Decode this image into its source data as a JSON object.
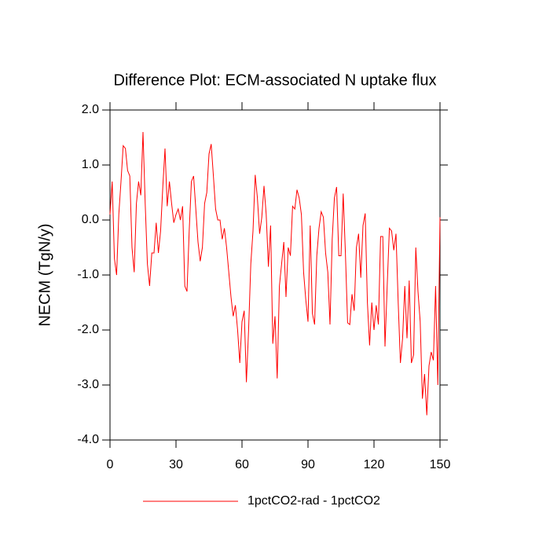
{
  "chart_data": {
    "type": "line",
    "title": "Difference Plot: ECM-associated N uptake flux",
    "y_label": "NECM  (TgN/y)",
    "x": [
      0,
      1,
      2,
      3,
      4,
      5,
      6,
      7,
      8,
      9,
      10,
      11,
      12,
      13,
      14,
      15,
      16,
      17,
      18,
      19,
      20,
      21,
      22,
      23,
      24,
      25,
      26,
      27,
      28,
      29,
      30,
      31,
      32,
      33,
      34,
      35,
      36,
      37,
      38,
      39,
      40,
      41,
      42,
      43,
      44,
      45,
      46,
      47,
      48,
      49,
      50,
      51,
      52,
      53,
      54,
      55,
      56,
      57,
      58,
      59,
      60,
      61,
      62,
      63,
      64,
      65,
      66,
      67,
      68,
      69,
      70,
      71,
      72,
      73,
      74,
      75,
      76,
      77,
      78,
      79,
      80,
      81,
      82,
      83,
      84,
      85,
      86,
      87,
      88,
      89,
      90,
      91,
      92,
      93,
      94,
      95,
      96,
      97,
      98,
      99,
      100,
      101,
      102,
      103,
      104,
      105,
      106,
      107,
      108,
      109,
      110,
      111,
      112,
      113,
      114,
      115,
      116,
      117,
      118,
      119,
      120,
      121,
      122,
      123,
      124,
      125,
      126,
      127,
      128,
      129,
      130,
      131,
      132,
      133,
      134,
      135,
      136,
      137,
      138,
      139,
      140,
      141,
      142,
      143,
      144,
      145,
      146,
      147,
      148,
      149,
      150
    ],
    "series": [
      {
        "name": "1pctCO2-rad - 1pctCO2",
        "color": "#ff0000",
        "values": [
          0.1,
          0.7,
          -0.7,
          -1.0,
          0.1,
          0.7,
          1.35,
          1.3,
          0.9,
          0.8,
          -0.5,
          -0.95,
          0.3,
          0.7,
          0.45,
          1.6,
          0.3,
          -0.8,
          -1.2,
          -0.6,
          -0.6,
          -0.05,
          -0.6,
          -0.2,
          0.6,
          1.3,
          0.25,
          0.7,
          0.3,
          -0.05,
          0.1,
          0.2,
          0.0,
          0.25,
          -1.2,
          -1.3,
          -0.2,
          0.7,
          0.8,
          0.2,
          -0.4,
          -0.75,
          -0.5,
          0.3,
          0.5,
          1.2,
          1.38,
          0.8,
          0.2,
          0.0,
          0.0,
          -0.35,
          -0.15,
          -0.5,
          -0.95,
          -1.4,
          -1.75,
          -1.55,
          -2.0,
          -2.6,
          -1.85,
          -1.65,
          -2.95,
          -2.0,
          -0.8,
          -0.2,
          0.82,
          0.4,
          -0.25,
          0.05,
          0.62,
          0.1,
          -0.85,
          -0.1,
          -2.25,
          -1.75,
          -2.88,
          -1.2,
          -0.8,
          -0.4,
          -1.4,
          -0.5,
          -0.65,
          0.25,
          0.2,
          0.55,
          0.4,
          0.1,
          -0.95,
          -1.45,
          -1.85,
          -0.1,
          -1.7,
          -1.9,
          -0.65,
          -0.15,
          0.15,
          0.05,
          -0.6,
          -0.95,
          -1.9,
          -0.35,
          0.4,
          0.6,
          -0.65,
          -0.65,
          0.48,
          -0.6,
          -1.87,
          -1.9,
          -1.35,
          -1.65,
          -0.5,
          -0.25,
          -1.05,
          -0.1,
          0.12,
          -1.5,
          -2.28,
          -1.5,
          -2.0,
          -1.55,
          -1.9,
          -0.3,
          -0.3,
          -2.3,
          -1.2,
          -0.15,
          -0.2,
          -0.55,
          -0.25,
          -1.5,
          -2.6,
          -2.15,
          -1.2,
          -2.15,
          -1.1,
          -2.6,
          -2.45,
          -0.5,
          -1.3,
          -1.85,
          -3.25,
          -2.8,
          -3.55,
          -2.65,
          -2.4,
          -2.55,
          -1.2,
          -3.0,
          0.05
        ]
      }
    ],
    "xlim": [
      0,
      150
    ],
    "xticks": [
      0,
      30,
      60,
      90,
      120,
      150
    ],
    "ylim": [
      -4,
      2
    ],
    "yticks": [
      {
        "value": 2,
        "label": "2.0"
      },
      {
        "value": 1,
        "label": "1.0"
      },
      {
        "value": 0,
        "label": "0.0"
      },
      {
        "value": -1,
        "label": "-1.0"
      },
      {
        "value": -2,
        "label": "-2.0"
      },
      {
        "value": -3,
        "label": "-3.0"
      },
      {
        "value": -4,
        "label": "-4.0"
      }
    ],
    "grid": false
  }
}
